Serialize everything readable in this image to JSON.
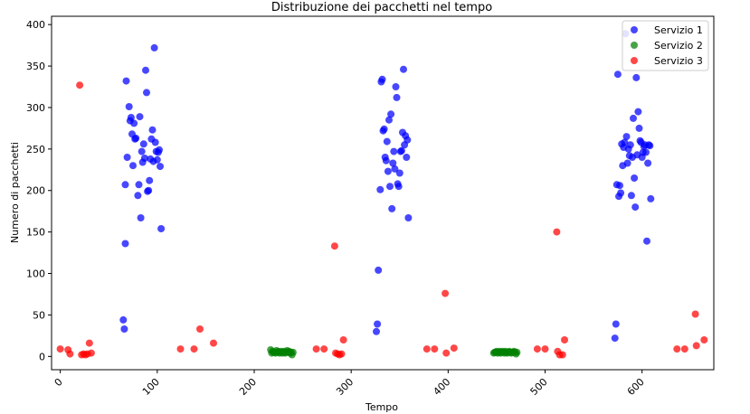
{
  "chart_data": {
    "type": "scatter",
    "title": "Distribuzione dei pacchetti nel tempo",
    "xlabel": "Tempo",
    "ylabel": "Numero di pacchetti",
    "xlim": [
      -9,
      674
    ],
    "ylim": [
      -16,
      410
    ],
    "xticks": [
      0,
      100,
      200,
      300,
      400,
      500,
      600
    ],
    "yticks": [
      0,
      50,
      100,
      150,
      200,
      250,
      300,
      350,
      400
    ],
    "grid": false,
    "legend_position": "top-right",
    "series": [
      {
        "name": "Servizio 1",
        "color": "#0000ff",
        "points": [
          [
            65,
            44
          ],
          [
            66,
            33
          ],
          [
            67,
            136
          ],
          [
            68,
            332
          ],
          [
            67,
            207
          ],
          [
            69,
            240
          ],
          [
            71,
            301
          ],
          [
            72,
            284
          ],
          [
            73,
            288
          ],
          [
            74,
            268
          ],
          [
            75,
            230
          ],
          [
            76,
            281
          ],
          [
            77,
            262
          ],
          [
            78,
            263
          ],
          [
            80,
            194
          ],
          [
            81,
            207
          ],
          [
            82,
            289
          ],
          [
            83,
            167
          ],
          [
            84,
            247
          ],
          [
            85,
            234
          ],
          [
            86,
            256
          ],
          [
            87,
            239
          ],
          [
            88,
            345
          ],
          [
            89,
            318
          ],
          [
            90,
            199
          ],
          [
            91,
            200
          ],
          [
            92,
            212
          ],
          [
            93,
            238
          ],
          [
            94,
            262
          ],
          [
            95,
            273
          ],
          [
            96,
            235
          ],
          [
            97,
            372
          ],
          [
            98,
            258
          ],
          [
            99,
            247
          ],
          [
            100,
            237
          ],
          [
            101,
            246
          ],
          [
            102,
            249
          ],
          [
            103,
            229
          ],
          [
            104,
            154
          ],
          [
            326,
            30
          ],
          [
            327,
            39
          ],
          [
            328,
            104
          ],
          [
            330,
            201
          ],
          [
            331,
            331
          ],
          [
            332,
            334
          ],
          [
            333,
            272
          ],
          [
            334,
            274
          ],
          [
            335,
            240
          ],
          [
            336,
            236
          ],
          [
            337,
            259
          ],
          [
            338,
            223
          ],
          [
            339,
            285
          ],
          [
            340,
            205
          ],
          [
            341,
            292
          ],
          [
            342,
            178
          ],
          [
            343,
            233
          ],
          [
            344,
            247
          ],
          [
            345,
            226
          ],
          [
            346,
            325
          ],
          [
            347,
            312
          ],
          [
            348,
            208
          ],
          [
            349,
            205
          ],
          [
            350,
            221
          ],
          [
            351,
            247
          ],
          [
            352,
            248
          ],
          [
            353,
            270
          ],
          [
            354,
            346
          ],
          [
            355,
            255
          ],
          [
            356,
            266
          ],
          [
            357,
            240
          ],
          [
            358,
            261
          ],
          [
            359,
            167
          ],
          [
            572,
            22
          ],
          [
            573,
            39
          ],
          [
            574,
            207
          ],
          [
            575,
            340
          ],
          [
            576,
            193
          ],
          [
            577,
            206
          ],
          [
            578,
            197
          ],
          [
            579,
            256
          ],
          [
            580,
            230
          ],
          [
            581,
            252
          ],
          [
            582,
            258
          ],
          [
            583,
            389
          ],
          [
            584,
            265
          ],
          [
            585,
            233
          ],
          [
            586,
            250
          ],
          [
            587,
            242
          ],
          [
            588,
            255
          ],
          [
            589,
            194
          ],
          [
            590,
            240
          ],
          [
            591,
            287
          ],
          [
            592,
            215
          ],
          [
            593,
            180
          ],
          [
            594,
            336
          ],
          [
            595,
            243
          ],
          [
            596,
            295
          ],
          [
            597,
            275
          ],
          [
            598,
            260
          ],
          [
            599,
            258
          ],
          [
            600,
            240
          ],
          [
            601,
            246
          ],
          [
            602,
            253
          ],
          [
            603,
            255
          ],
          [
            604,
            246
          ],
          [
            605,
            139
          ],
          [
            606,
            233
          ],
          [
            607,
            255
          ],
          [
            608,
            254
          ],
          [
            609,
            190
          ]
        ]
      },
      {
        "name": "Servizio 2",
        "color": "#008000",
        "points": [
          [
            217,
            8
          ],
          [
            218,
            4
          ],
          [
            219,
            6
          ],
          [
            220,
            5
          ],
          [
            221,
            5
          ],
          [
            222,
            4
          ],
          [
            223,
            7
          ],
          [
            224,
            5
          ],
          [
            225,
            6
          ],
          [
            226,
            4
          ],
          [
            227,
            5
          ],
          [
            228,
            6
          ],
          [
            229,
            4
          ],
          [
            230,
            5
          ],
          [
            231,
            6
          ],
          [
            232,
            4
          ],
          [
            233,
            5
          ],
          [
            234,
            7
          ],
          [
            235,
            5
          ],
          [
            236,
            6
          ],
          [
            237,
            4
          ],
          [
            238,
            5
          ],
          [
            239,
            2
          ],
          [
            240,
            5
          ],
          [
            447,
            4
          ],
          [
            448,
            5
          ],
          [
            449,
            5
          ],
          [
            450,
            6
          ],
          [
            451,
            4
          ],
          [
            452,
            5
          ],
          [
            453,
            6
          ],
          [
            454,
            4
          ],
          [
            455,
            5
          ],
          [
            456,
            6
          ],
          [
            457,
            5
          ],
          [
            458,
            4
          ],
          [
            459,
            6
          ],
          [
            460,
            5
          ],
          [
            461,
            4
          ],
          [
            462,
            5
          ],
          [
            463,
            6
          ],
          [
            464,
            5
          ],
          [
            465,
            4
          ],
          [
            466,
            5
          ],
          [
            467,
            5
          ],
          [
            468,
            6
          ],
          [
            469,
            5
          ],
          [
            470,
            3
          ],
          [
            471,
            5
          ]
        ]
      },
      {
        "name": "Servizio 3",
        "color": "#ff0000",
        "points": [
          [
            0,
            9
          ],
          [
            8,
            8
          ],
          [
            10,
            3
          ],
          [
            20,
            327
          ],
          [
            22,
            2
          ],
          [
            24,
            3
          ],
          [
            26,
            2
          ],
          [
            28,
            3
          ],
          [
            30,
            16
          ],
          [
            32,
            4
          ],
          [
            124,
            9
          ],
          [
            138,
            9
          ],
          [
            144,
            33
          ],
          [
            158,
            16
          ],
          [
            264,
            9
          ],
          [
            272,
            9
          ],
          [
            283,
            133
          ],
          [
            284,
            4
          ],
          [
            286,
            3
          ],
          [
            288,
            2
          ],
          [
            290,
            3
          ],
          [
            292,
            20
          ],
          [
            378,
            9
          ],
          [
            386,
            9
          ],
          [
            397,
            76
          ],
          [
            398,
            4
          ],
          [
            406,
            10
          ],
          [
            492,
            9
          ],
          [
            500,
            9
          ],
          [
            512,
            150
          ],
          [
            513,
            6
          ],
          [
            515,
            2
          ],
          [
            518,
            2
          ],
          [
            520,
            20
          ],
          [
            636,
            9
          ],
          [
            644,
            9
          ],
          [
            655,
            51
          ],
          [
            656,
            13
          ],
          [
            664,
            20
          ]
        ]
      }
    ]
  }
}
